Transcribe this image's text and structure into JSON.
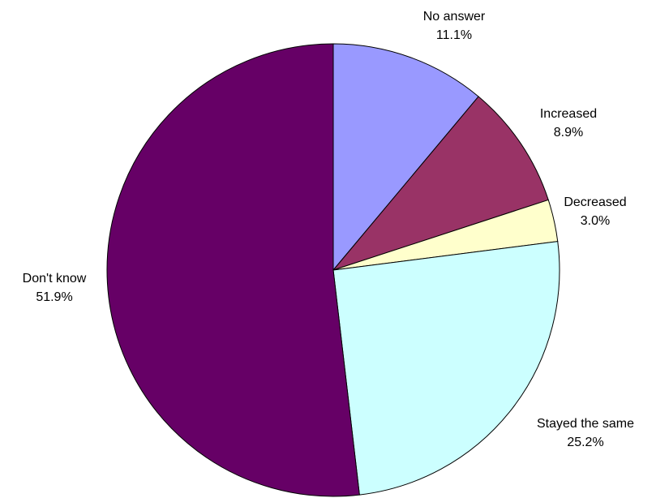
{
  "chart_data": {
    "type": "pie",
    "title": "",
    "start_angle_deg": 0,
    "direction": "clockwise",
    "slices": [
      {
        "label": "No answer",
        "value": 11.1,
        "value_label": "11.1%",
        "color": "#9999FF"
      },
      {
        "label": "Increased",
        "value": 8.9,
        "value_label": "8.9%",
        "color": "#993366"
      },
      {
        "label": "Decreased",
        "value": 3.0,
        "value_label": "3.0%",
        "color": "#FFFFCC"
      },
      {
        "label": "Stayed the same",
        "value": 25.2,
        "value_label": "25.2%",
        "color": "#CCFFFF"
      },
      {
        "label": "Don't know",
        "value": 51.9,
        "value_label": "51.9%",
        "color": "#660066"
      }
    ],
    "legend": "none",
    "slice_border_color": "#000000"
  }
}
